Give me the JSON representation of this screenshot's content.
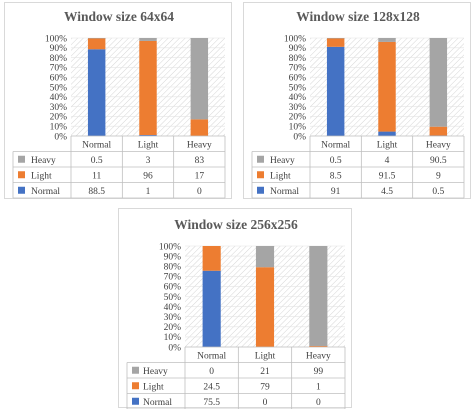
{
  "colors": {
    "Normal": "#4472c4",
    "Light": "#ed7d31",
    "Heavy": "#a5a5a5"
  },
  "chart_data": [
    {
      "type": "bar",
      "stacked": "percent",
      "title": "Window size 64x64",
      "categories": [
        "Normal",
        "Light",
        "Heavy"
      ],
      "ylim": [
        0,
        100
      ],
      "yticks": [
        "0%",
        "10%",
        "20%",
        "30%",
        "40%",
        "50%",
        "60%",
        "70%",
        "80%",
        "90%",
        "100%"
      ],
      "series": [
        {
          "name": "Normal",
          "values": [
            88.5,
            1,
            0
          ]
        },
        {
          "name": "Light",
          "values": [
            11,
            96,
            17
          ]
        },
        {
          "name": "Heavy",
          "values": [
            0.5,
            3,
            83
          ]
        }
      ],
      "data_table": {
        "rows": [
          {
            "label": "Heavy",
            "values": [
              "0.5",
              "3",
              "83"
            ]
          },
          {
            "label": "Light",
            "values": [
              "11",
              "96",
              "17"
            ]
          },
          {
            "label": "Normal",
            "values": [
              "88.5",
              "1",
              "0"
            ]
          }
        ]
      }
    },
    {
      "type": "bar",
      "stacked": "percent",
      "title": "Window size 128x128",
      "categories": [
        "Normal",
        "Light",
        "Heavy"
      ],
      "ylim": [
        0,
        100
      ],
      "yticks": [
        "0%",
        "10%",
        "20%",
        "30%",
        "40%",
        "50%",
        "60%",
        "70%",
        "80%",
        "90%",
        "100%"
      ],
      "series": [
        {
          "name": "Normal",
          "values": [
            91,
            4.5,
            0.5
          ]
        },
        {
          "name": "Light",
          "values": [
            8.5,
            91.5,
            9
          ]
        },
        {
          "name": "Heavy",
          "values": [
            0.5,
            4,
            90.5
          ]
        }
      ],
      "data_table": {
        "rows": [
          {
            "label": "Heavy",
            "values": [
              "0.5",
              "4",
              "90.5"
            ]
          },
          {
            "label": "Light",
            "values": [
              "8.5",
              "91.5",
              "9"
            ]
          },
          {
            "label": "Normal",
            "values": [
              "91",
              "4.5",
              "0.5"
            ]
          }
        ]
      }
    },
    {
      "type": "bar",
      "stacked": "percent",
      "title": "Window size 256x256",
      "categories": [
        "Normal",
        "Light",
        "Heavy"
      ],
      "ylim": [
        0,
        100
      ],
      "yticks": [
        "0%",
        "10%",
        "20%",
        "30%",
        "40%",
        "50%",
        "60%",
        "70%",
        "80%",
        "90%",
        "100%"
      ],
      "series": [
        {
          "name": "Normal",
          "values": [
            75.5,
            0,
            0
          ]
        },
        {
          "name": "Light",
          "values": [
            24.5,
            79,
            1
          ]
        },
        {
          "name": "Heavy",
          "values": [
            0,
            21,
            99
          ]
        }
      ],
      "data_table": {
        "rows": [
          {
            "label": "Heavy",
            "values": [
              "0",
              "21",
              "99"
            ]
          },
          {
            "label": "Light",
            "values": [
              "24.5",
              "79",
              "1"
            ]
          },
          {
            "label": "Normal",
            "values": [
              "75.5",
              "0",
              "0"
            ]
          }
        ]
      }
    }
  ]
}
